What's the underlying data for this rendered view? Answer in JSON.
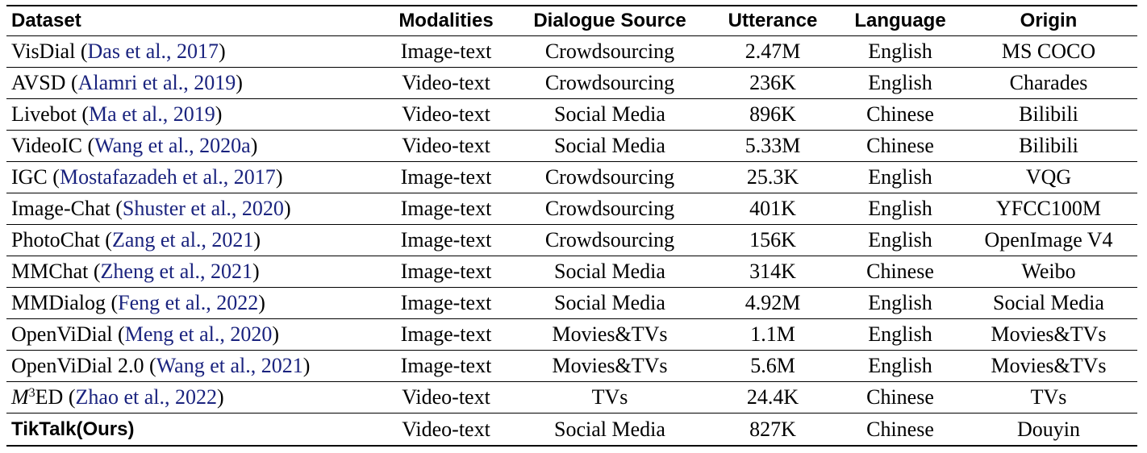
{
  "table": {
    "headers": [
      "Dataset",
      "Modalities",
      "Dialogue Source",
      "Utterance",
      "Language",
      "Origin"
    ],
    "rows": [
      {
        "name": "VisDial",
        "cite": "Das et al., 2017",
        "modalities": "Image-text",
        "source": "Crowdsourcing",
        "utterance": "2.47M",
        "language": "English",
        "origin": "MS COCO"
      },
      {
        "name": "AVSD",
        "cite": "Alamri et al., 2019",
        "modalities": "Video-text",
        "source": "Crowdsourcing",
        "utterance": "236K",
        "language": "English",
        "origin": "Charades"
      },
      {
        "name": "Livebot",
        "cite": "Ma et al., 2019",
        "modalities": "Video-text",
        "source": "Social Media",
        "utterance": "896K",
        "language": "Chinese",
        "origin": "Bilibili"
      },
      {
        "name": "VideoIC",
        "cite": "Wang et al., 2020a",
        "modalities": "Video-text",
        "source": "Social Media",
        "utterance": "5.33M",
        "language": "Chinese",
        "origin": "Bilibili"
      },
      {
        "name": "IGC",
        "cite": "Mostafazadeh et al., 2017",
        "modalities": "Image-text",
        "source": "Crowdsourcing",
        "utterance": "25.3K",
        "language": "English",
        "origin": "VQG"
      },
      {
        "name": "Image-Chat",
        "cite": "Shuster et al., 2020",
        "modalities": "Image-text",
        "source": "Crowdsourcing",
        "utterance": "401K",
        "language": "English",
        "origin": "YFCC100M"
      },
      {
        "name": "PhotoChat",
        "cite": "Zang et al., 2021",
        "modalities": "Image-text",
        "source": "Crowdsourcing",
        "utterance": "156K",
        "language": "English",
        "origin": "OpenImage V4"
      },
      {
        "name": "MMChat",
        "cite": "Zheng et al., 2021",
        "modalities": "Image-text",
        "source": "Social Media",
        "utterance": "314K",
        "language": "Chinese",
        "origin": "Weibo"
      },
      {
        "name": "MMDialog",
        "cite": "Feng et al., 2022",
        "modalities": "Image-text",
        "source": "Social Media",
        "utterance": "4.92M",
        "language": "English",
        "origin": "Social Media"
      },
      {
        "name": "OpenViDial",
        "cite": "Meng et al., 2020",
        "modalities": "Image-text",
        "source": "Movies&TVs",
        "utterance": "1.1M",
        "language": "English",
        "origin": "Movies&TVs"
      },
      {
        "name": "OpenViDial 2.0 ",
        "cite": "Wang et al., 2021",
        "modalities": "Image-text",
        "source": "Movies&TVs",
        "utterance": "5.6M",
        "language": "English",
        "origin": "Movies&TVs"
      },
      {
        "name": "ED",
        "name_math": "M",
        "name_sup": "3",
        "cite": "Zhao et al., 2022",
        "modalities": "Video-text",
        "source": "TVs",
        "utterance": "24.4K",
        "language": "Chinese",
        "origin": "TVs"
      },
      {
        "name": "TikTalk(Ours)",
        "bold": true,
        "modalities": "Video-text",
        "source": "Social Media",
        "utterance": "827K",
        "language": "Chinese",
        "origin": "Douyin"
      }
    ]
  }
}
